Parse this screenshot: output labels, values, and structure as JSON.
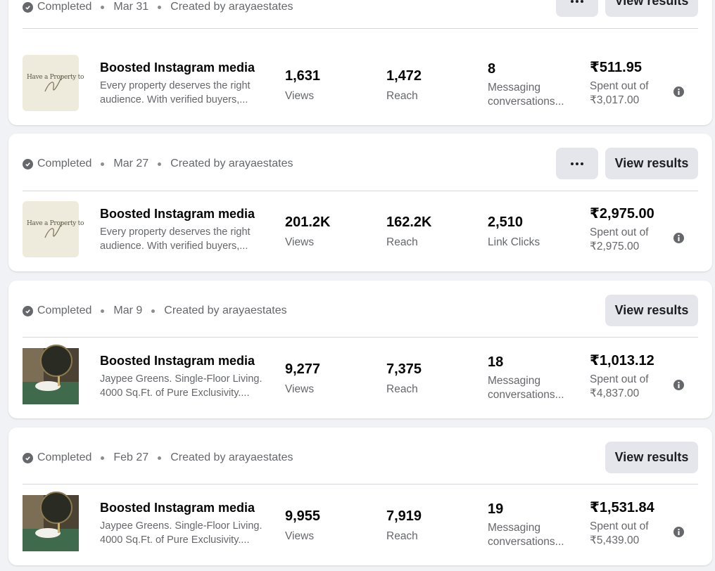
{
  "header_action_labels": {
    "view_results": "View results"
  },
  "cards": [
    {
      "status": "Completed",
      "date": "Mar 31",
      "creator": "Created by arayaestates",
      "has_more": true,
      "title": "Boosted Instagram media",
      "desc_line1": "Every property deserves the right",
      "desc_line2": "audience. With verified buyers,...",
      "thumb_text": "Have a Property to",
      "metric1_value": "1,631",
      "metric1_label": "Views",
      "metric2_value": "1,472",
      "metric2_label": "Reach",
      "metric3_value": "8",
      "metric3_label1": "Messaging",
      "metric3_label2": "conversations...",
      "spent_value": "₹511.95",
      "spent_label": "Spent out of",
      "spent_total": "₹3,017.00"
    },
    {
      "status": "Completed",
      "date": "Mar 27",
      "creator": "Created by arayaestates",
      "has_more": true,
      "title": "Boosted Instagram media",
      "desc_line1": "Every property deserves the right",
      "desc_line2": "audience. With verified buyers,...",
      "thumb_text": "Have a Property to",
      "metric1_value": "201.2K",
      "metric1_label": "Views",
      "metric2_value": "162.2K",
      "metric2_label": "Reach",
      "metric3_value": "2,510",
      "metric3_label1": "Link Clicks",
      "metric3_label2": "",
      "spent_value": "₹2,975.00",
      "spent_label": "Spent out of",
      "spent_total": "₹2,975.00"
    },
    {
      "status": "Completed",
      "date": "Mar 9",
      "creator": "Created by arayaestates",
      "has_more": false,
      "title": "Boosted Instagram media",
      "desc_line1": "Jaypee Greens. Single-Floor Living.",
      "desc_line2": "4000 Sq.Ft. of Pure Exclusivity....",
      "metric1_value": "9,277",
      "metric1_label": "Views",
      "metric2_value": "7,375",
      "metric2_label": "Reach",
      "metric3_value": "18",
      "metric3_label1": "Messaging",
      "metric3_label2": "conversations...",
      "spent_value": "₹1,013.12",
      "spent_label": "Spent out of",
      "spent_total": "₹4,837.00"
    },
    {
      "status": "Completed",
      "date": "Feb 27",
      "creator": "Created by arayaestates",
      "has_more": false,
      "title": "Boosted Instagram media",
      "desc_line1": "Jaypee Greens. Single-Floor Living.",
      "desc_line2": "4000 Sq.Ft. of Pure Exclusivity....",
      "metric1_value": "9,955",
      "metric1_label": "Views",
      "metric2_value": "7,919",
      "metric2_label": "Reach",
      "metric3_value": "19",
      "metric3_label1": "Messaging",
      "metric3_label2": "conversations...",
      "spent_value": "₹1,531.84",
      "spent_label": "Spent out of",
      "spent_total": "₹5,439.00"
    }
  ]
}
